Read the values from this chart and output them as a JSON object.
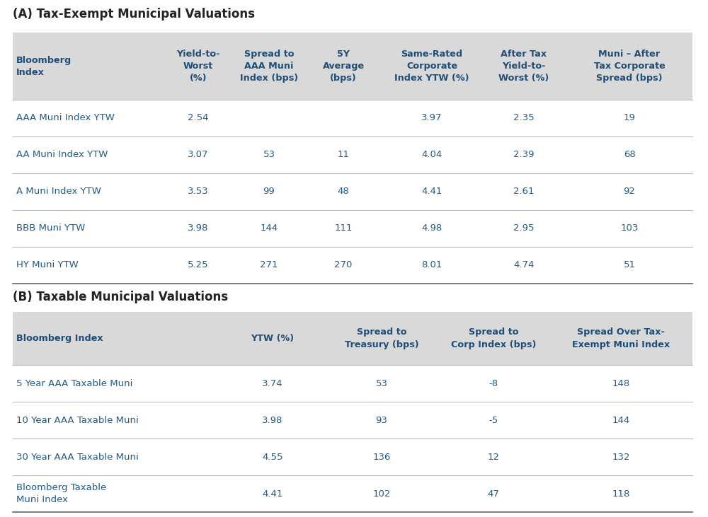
{
  "title_a": "(A) Tax-Exempt Municipal Valuations",
  "title_b": "(B) Taxable Municipal Valuations",
  "header_bg": "#d9d9d9",
  "text_color_header": "#1f4e79",
  "text_color_row": "#1f5c8b",
  "text_color_title": "#222222",
  "table_a_headers": [
    "Bloomberg\nIndex",
    "Yield-to-\nWorst\n(%)",
    "Spread to\nAAA Muni\nIndex (bps)",
    "5Y\nAverage\n(bps)",
    "Same-Rated\nCorporate\nIndex YTW (%)",
    "After Tax\nYield-to-\nWorst (%)",
    "Muni – After\nTax Corporate\nSpread (bps)"
  ],
  "table_a_rows": [
    [
      "AAA Muni Index YTW",
      "2.54",
      "",
      "",
      "3.97",
      "2.35",
      "19"
    ],
    [
      "AA Muni Index YTW",
      "3.07",
      "53",
      "11",
      "4.04",
      "2.39",
      "68"
    ],
    [
      "A Muni Index YTW",
      "3.53",
      "99",
      "48",
      "4.41",
      "2.61",
      "92"
    ],
    [
      "BBB Muni YTW",
      "3.98",
      "144",
      "111",
      "4.98",
      "2.95",
      "103"
    ],
    [
      "HY Muni YTW",
      "5.25",
      "271",
      "270",
      "8.01",
      "4.74",
      "51"
    ]
  ],
  "table_b_headers": [
    "Bloomberg Index",
    "YTW (%)",
    "Spread to\nTreasury (bps)",
    "Spread to\nCorp Index (bps)",
    "Spread Over Tax-\nExempt Muni Index"
  ],
  "table_b_rows": [
    [
      "5 Year AAA Taxable Muni",
      "3.74",
      "53",
      "-8",
      "148"
    ],
    [
      "10 Year AAA Taxable Muni",
      "3.98",
      "93",
      "-5",
      "144"
    ],
    [
      "30 Year AAA Taxable Muni",
      "4.55",
      "136",
      "12",
      "132"
    ],
    [
      "Bloomberg Taxable\nMuni Index",
      "4.41",
      "102",
      "47",
      "118"
    ]
  ],
  "bg_color": "#ffffff",
  "header_font_size": 9.2,
  "row_font_size": 9.5,
  "title_font_size": 12,
  "separator_color": "#bbbbbb",
  "bottom_line_color": "#666666"
}
